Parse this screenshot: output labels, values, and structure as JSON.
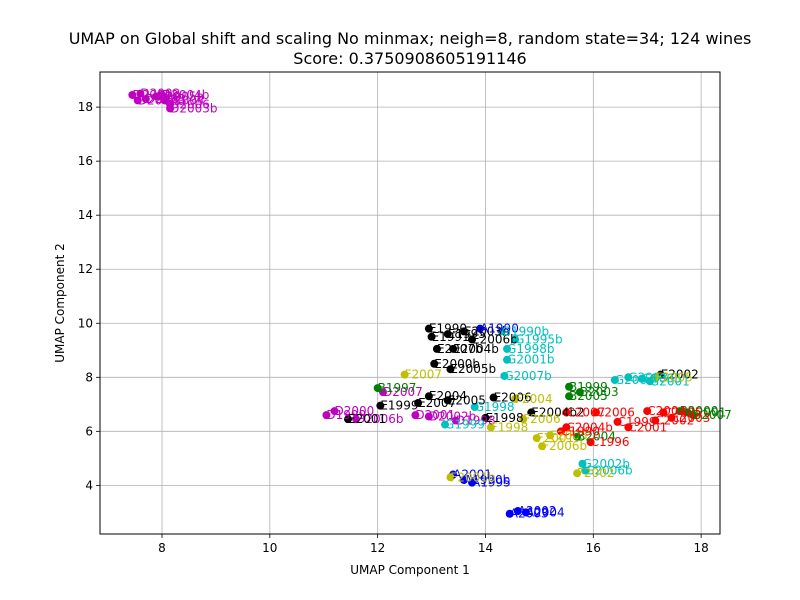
{
  "chart_data": {
    "type": "scatter",
    "title": "UMAP on Global shift and scaling No minmax; neigh=8, random state=34; 124 wines",
    "subtitle": "Score: 0.3750908605191146",
    "xlabel": "UMAP Component 1",
    "ylabel": "UMAP Component 2",
    "xlim": [
      6.85,
      18.35
    ],
    "ylim": [
      2.2,
      19.3
    ],
    "xticks": [
      8,
      10,
      12,
      14,
      16,
      18
    ],
    "yticks": [
      4,
      6,
      8,
      10,
      12,
      14,
      16,
      18
    ],
    "grid": true,
    "colors": {
      "A": "#0000ff",
      "B": "#008000",
      "C": "#ff0000",
      "D": "#c000c0",
      "E": "#000000",
      "F": "#bfbf00",
      "G": "#00bfbf"
    },
    "points": [
      {
        "label": "D2001b",
        "group": "D",
        "x": 7.45,
        "y": 18.45
      },
      {
        "label": "D2002",
        "group": "D",
        "x": 7.6,
        "y": 18.5
      },
      {
        "label": "D2003",
        "group": "D",
        "x": 7.7,
        "y": 18.3
      },
      {
        "label": "D2005b",
        "group": "D",
        "x": 7.9,
        "y": 18.4
      },
      {
        "label": "D2004",
        "group": "D",
        "x": 8.05,
        "y": 18.25
      },
      {
        "label": "D2006",
        "group": "D",
        "x": 8.15,
        "y": 18.1
      },
      {
        "label": "D2007b",
        "group": "D",
        "x": 7.55,
        "y": 18.25
      },
      {
        "label": "D2003b",
        "group": "D",
        "x": 8.15,
        "y": 17.95
      },
      {
        "label": "D2004b",
        "group": "D",
        "x": 8.0,
        "y": 18.45
      },
      {
        "label": "D1999",
        "group": "D",
        "x": 11.05,
        "y": 6.6
      },
      {
        "label": "D2000",
        "group": "D",
        "x": 11.2,
        "y": 6.75
      },
      {
        "label": "D2006b",
        "group": "D",
        "x": 11.6,
        "y": 6.45
      },
      {
        "label": "D2007",
        "group": "D",
        "x": 12.1,
        "y": 7.45
      },
      {
        "label": "D2001",
        "group": "D",
        "x": 12.7,
        "y": 6.6
      },
      {
        "label": "D2002b",
        "group": "D",
        "x": 12.95,
        "y": 6.55
      },
      {
        "label": "D1998",
        "group": "D",
        "x": 13.45,
        "y": 6.4
      },
      {
        "label": "E1990",
        "group": "E",
        "x": 12.95,
        "y": 9.8
      },
      {
        "label": "E1991",
        "group": "E",
        "x": 13.0,
        "y": 9.5
      },
      {
        "label": "E1995",
        "group": "E",
        "x": 13.3,
        "y": 9.6
      },
      {
        "label": "E2003b",
        "group": "E",
        "x": 13.6,
        "y": 9.7
      },
      {
        "label": "E2006b",
        "group": "E",
        "x": 13.75,
        "y": 9.4
      },
      {
        "label": "E2007b",
        "group": "E",
        "x": 13.1,
        "y": 9.05
      },
      {
        "label": "E2004b",
        "group": "E",
        "x": 13.4,
        "y": 9.05
      },
      {
        "label": "E2000b",
        "group": "E",
        "x": 13.05,
        "y": 8.5
      },
      {
        "label": "E2005b",
        "group": "E",
        "x": 13.35,
        "y": 8.3
      },
      {
        "label": "E2004",
        "group": "E",
        "x": 12.95,
        "y": 7.3
      },
      {
        "label": "E1999",
        "group": "E",
        "x": 12.05,
        "y": 6.95
      },
      {
        "label": "E2007",
        "group": "E",
        "x": 12.75,
        "y": 7.05
      },
      {
        "label": "E2005",
        "group": "E",
        "x": 13.3,
        "y": 7.15
      },
      {
        "label": "E2006",
        "group": "E",
        "x": 14.15,
        "y": 7.25
      },
      {
        "label": "E2001",
        "group": "E",
        "x": 11.45,
        "y": 6.45
      },
      {
        "label": "E1998",
        "group": "E",
        "x": 14.0,
        "y": 6.5
      },
      {
        "label": "E2004b2",
        "group": "E",
        "x": 14.85,
        "y": 6.7
      },
      {
        "label": "E2002",
        "group": "E",
        "x": 17.25,
        "y": 8.1
      },
      {
        "label": "A1990",
        "group": "A",
        "x": 13.9,
        "y": 9.8
      },
      {
        "label": "A2001",
        "group": "A",
        "x": 13.4,
        "y": 4.4
      },
      {
        "label": "A1990b",
        "group": "A",
        "x": 13.6,
        "y": 4.2
      },
      {
        "label": "A1995",
        "group": "A",
        "x": 13.75,
        "y": 4.1
      },
      {
        "label": "A2003",
        "group": "A",
        "x": 14.45,
        "y": 2.95
      },
      {
        "label": "A2002",
        "group": "A",
        "x": 14.6,
        "y": 3.05
      },
      {
        "label": "A2004",
        "group": "A",
        "x": 14.75,
        "y": 3.0
      },
      {
        "label": "G1990b",
        "group": "G",
        "x": 14.3,
        "y": 9.7
      },
      {
        "label": "G1995b",
        "group": "G",
        "x": 14.55,
        "y": 9.4
      },
      {
        "label": "G1998b",
        "group": "G",
        "x": 14.4,
        "y": 9.05
      },
      {
        "label": "G2001b",
        "group": "G",
        "x": 14.4,
        "y": 8.65
      },
      {
        "label": "G2007b",
        "group": "G",
        "x": 14.35,
        "y": 8.05
      },
      {
        "label": "G2004",
        "group": "G",
        "x": 16.4,
        "y": 7.9
      },
      {
        "label": "G2003",
        "group": "G",
        "x": 16.65,
        "y": 8.0
      },
      {
        "label": "G2005",
        "group": "G",
        "x": 16.9,
        "y": 7.95
      },
      {
        "label": "G2001",
        "group": "G",
        "x": 17.05,
        "y": 7.85
      },
      {
        "label": "G1998",
        "group": "G",
        "x": 13.8,
        "y": 6.9
      },
      {
        "label": "G1999",
        "group": "G",
        "x": 13.25,
        "y": 6.25
      },
      {
        "label": "G2002b",
        "group": "G",
        "x": 15.8,
        "y": 4.8
      },
      {
        "label": "G2006b",
        "group": "G",
        "x": 15.85,
        "y": 4.55
      },
      {
        "label": "F2007",
        "group": "F",
        "x": 12.5,
        "y": 8.1
      },
      {
        "label": "F2004",
        "group": "F",
        "x": 14.55,
        "y": 7.2
      },
      {
        "label": "F2006",
        "group": "F",
        "x": 14.7,
        "y": 6.45
      },
      {
        "label": "F1998",
        "group": "F",
        "x": 14.1,
        "y": 6.15
      },
      {
        "label": "F2001",
        "group": "F",
        "x": 14.95,
        "y": 5.75
      },
      {
        "label": "F2003",
        "group": "F",
        "x": 15.2,
        "y": 5.85
      },
      {
        "label": "F2006b",
        "group": "F",
        "x": 15.05,
        "y": 5.45
      },
      {
        "label": "F2002",
        "group": "F",
        "x": 15.7,
        "y": 4.45
      },
      {
        "label": "F2001b",
        "group": "F",
        "x": 13.35,
        "y": 4.3
      },
      {
        "label": "F2005",
        "group": "F",
        "x": 17.15,
        "y": 8.0
      },
      {
        "label": "B1997",
        "group": "B",
        "x": 12.0,
        "y": 7.6
      },
      {
        "label": "B1999",
        "group": "B",
        "x": 15.55,
        "y": 7.65
      },
      {
        "label": "B2003",
        "group": "B",
        "x": 15.75,
        "y": 7.45
      },
      {
        "label": "B2005",
        "group": "B",
        "x": 15.55,
        "y": 7.3
      },
      {
        "label": "B2004",
        "group": "B",
        "x": 15.7,
        "y": 5.8
      },
      {
        "label": "B2000",
        "group": "B",
        "x": 17.6,
        "y": 6.75
      },
      {
        "label": "B2001",
        "group": "B",
        "x": 17.75,
        "y": 6.7
      },
      {
        "label": "B2007",
        "group": "B",
        "x": 17.85,
        "y": 6.6
      },
      {
        "label": "C1990",
        "group": "C",
        "x": 15.4,
        "y": 6.0
      },
      {
        "label": "C2004b",
        "group": "C",
        "x": 15.5,
        "y": 6.15
      },
      {
        "label": "C2007",
        "group": "C",
        "x": 15.5,
        "y": 6.7
      },
      {
        "label": "C1996",
        "group": "C",
        "x": 15.95,
        "y": 5.6
      },
      {
        "label": "C2006",
        "group": "C",
        "x": 16.05,
        "y": 6.7
      },
      {
        "label": "C1999",
        "group": "C",
        "x": 16.45,
        "y": 6.35
      },
      {
        "label": "C2001",
        "group": "C",
        "x": 16.65,
        "y": 6.15
      },
      {
        "label": "C2004",
        "group": "C",
        "x": 17.0,
        "y": 6.75
      },
      {
        "label": "C2005",
        "group": "C",
        "x": 17.3,
        "y": 6.7
      },
      {
        "label": "C2003",
        "group": "C",
        "x": 17.45,
        "y": 6.5
      },
      {
        "label": "C2002",
        "group": "C",
        "x": 17.15,
        "y": 6.4
      }
    ]
  }
}
